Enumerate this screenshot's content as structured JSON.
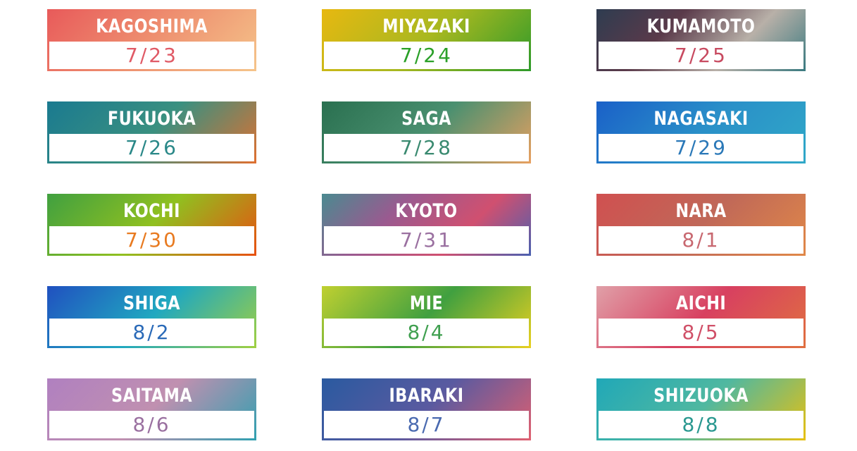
{
  "cards": [
    {
      "name": "KAGOSHIMA",
      "date": "7/23",
      "gradient": [
        "#e85a5a",
        "#ee9070",
        "#f5c48a"
      ],
      "date_color": "#e05a66"
    },
    {
      "name": "MIYAZAKI",
      "date": "7/24",
      "gradient": [
        "#e8b810",
        "#a8b820",
        "#2e9a2a"
      ],
      "date_color": "#2aa028"
    },
    {
      "name": "KUMAMOTO",
      "date": "7/25",
      "gradient": [
        "#2e3c50",
        "#5a3a4a",
        "#b8b0a8",
        "#3a7a80"
      ],
      "date_color": "#c84a60"
    },
    {
      "name": "FUKUOKA",
      "date": "7/26",
      "gradient": [
        "#1a7a90",
        "#3a9080",
        "#e07030"
      ],
      "date_color": "#2a8888"
    },
    {
      "name": "SAGA",
      "date": "7/28",
      "gradient": [
        "#2a7050",
        "#4a9070",
        "#e8a060"
      ],
      "date_color": "#3a8a70"
    },
    {
      "name": "NAGASAKI",
      "date": "7/29",
      "gradient": [
        "#1a60c8",
        "#2a90c8",
        "#30a8c8"
      ],
      "date_color": "#2a78b8"
    },
    {
      "name": "KOCHI",
      "date": "7/30",
      "gradient": [
        "#40a040",
        "#90c020",
        "#e85010"
      ],
      "date_color": "#e87a20"
    },
    {
      "name": "KYOTO",
      "date": "7/31",
      "gradient": [
        "#4a8a90",
        "#9a5a90",
        "#d05070",
        "#4a60b0"
      ],
      "date_color": "#9a70a0"
    },
    {
      "name": "NARA",
      "date": "8/1",
      "gradient": [
        "#d05050",
        "#c06858",
        "#e08848"
      ],
      "date_color": "#c86870"
    },
    {
      "name": "SHIGA",
      "date": "8/2",
      "gradient": [
        "#2050c0",
        "#20a8c0",
        "#a0d040"
      ],
      "date_color": "#2a6ab8"
    },
    {
      "name": "MIE",
      "date": "8/4",
      "gradient": [
        "#c0d030",
        "#40a040",
        "#e8d020"
      ],
      "date_color": "#40a050"
    },
    {
      "name": "AICHI",
      "date": "8/5",
      "gradient": [
        "#e0a0a8",
        "#d84060",
        "#e07040"
      ],
      "date_color": "#d05068"
    },
    {
      "name": "SAITAMA",
      "date": "8/6",
      "gradient": [
        "#b080c0",
        "#c090b0",
        "#30a0b0"
      ],
      "date_color": "#9a70a0"
    },
    {
      "name": "IBARAKI",
      "date": "8/7",
      "gradient": [
        "#2a5aa0",
        "#5a5aa0",
        "#e06070"
      ],
      "date_color": "#4a6ab0"
    },
    {
      "name": "SHIZUOKA",
      "date": "8/8",
      "gradient": [
        "#20a8b8",
        "#50b8a0",
        "#e8c010"
      ],
      "date_color": "#2a9890"
    }
  ]
}
